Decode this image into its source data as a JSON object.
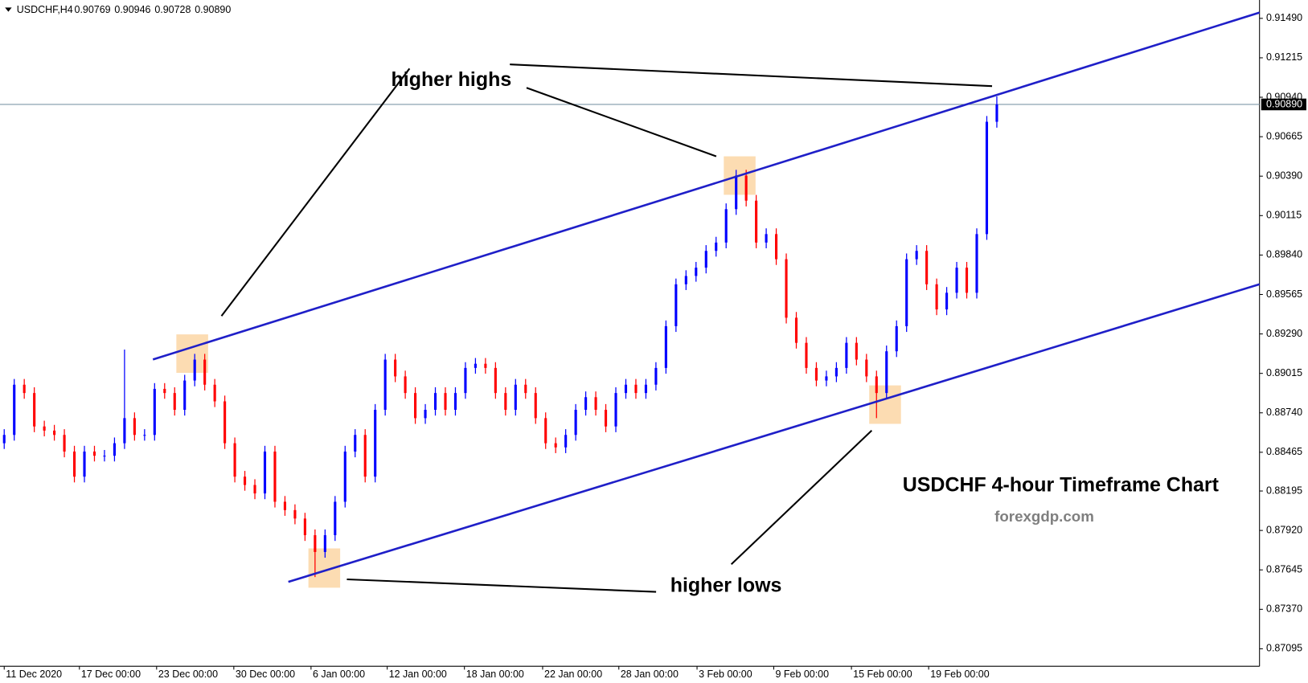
{
  "chart_data": {
    "type": "candlestick",
    "symbol": "USDCHF,H4",
    "title": "USDCHF 4-hour Timeframe Chart",
    "subtitle": "forexgdp.com",
    "annotations": [
      "higher highs",
      "higher lows"
    ],
    "current_price": {
      "value": 0.9089,
      "label": "0.90890"
    },
    "up_color": "#0000ff",
    "down_color": "#ff0000",
    "channel_color": "#1f1fc8",
    "ylim": [
      0.86973,
      0.91618
    ],
    "yticks": [
      {
        "value": 0.9149,
        "label": "0.91490"
      },
      0.91215,
      {
        "value": 0.9094,
        "label": "0.90940"
      },
      0.90665,
      {
        "value": 0.9039,
        "label": "0.90390"
      },
      0.90115,
      {
        "value": 0.8984,
        "label": "0.89840"
      },
      0.89565,
      {
        "value": 0.8929,
        "label": "0.89290"
      },
      0.89015,
      {
        "value": 0.8874,
        "label": "0.88740"
      },
      0.88465,
      0.88195,
      {
        "value": 0.8792,
        "label": "0.87920"
      },
      0.87645,
      {
        "value": 0.8737,
        "label": "0.87370"
      },
      0.87095
    ],
    "xlim": [
      -0.42,
      125.2
    ],
    "xticks": [
      {
        "value": 0,
        "label": "11 Dec 2020"
      },
      {
        "value": 7.5,
        "label": "17 Dec 00:00"
      },
      {
        "value": 15.2,
        "label": "23 Dec 00:00"
      },
      {
        "value": 22.9,
        "label": "30 Dec 00:00"
      },
      {
        "value": 30.6,
        "label": "6 Jan 00:00"
      },
      {
        "value": 38.2,
        "label": "12 Jan 00:00"
      },
      {
        "value": 45.9,
        "label": "18 Jan 00:00"
      },
      {
        "value": 53.7,
        "label": "22 Jan 00:00"
      },
      {
        "value": 61.3,
        "label": "28 Jan 00:00"
      },
      {
        "value": 69.1,
        "label": "3 Feb 00:00"
      },
      {
        "value": 76.75,
        "label": "9 Feb 00:00"
      },
      {
        "value": 84.5,
        "label": "15 Feb 00:00"
      },
      {
        "value": 92.2,
        "label": "19 Feb 00:00"
      }
    ],
    "open": [
      0.88528,
      0.88586,
      0.88936,
      0.88878,
      0.88645,
      0.88616,
      0.88586,
      0.8847,
      0.88295,
      0.8847,
      0.88441,
      0.88441,
      0.88528,
      0.88703,
      0.88586,
      0.88586,
      0.88907,
      0.88878,
      0.88761,
      0.88965,
      0.89111,
      0.88936,
      0.8882,
      0.88528,
      0.88295,
      0.88237,
      0.88178,
      0.8847,
      0.8812,
      0.88062,
      0.88003,
      0.87887,
      0.8777,
      0.87887,
      0.8812,
      0.8847,
      0.88586,
      0.88295,
      0.88761,
      0.89111,
      0.88994,
      0.88878,
      0.88703,
      0.88761,
      0.88878,
      0.88761,
      0.88878,
      0.89053,
      0.89082,
      0.89053,
      0.88878,
      0.88761,
      0.88936,
      0.88878,
      0.88703,
      0.88528,
      0.88499,
      0.88586,
      0.88761,
      0.88849,
      0.88761,
      0.88645,
      0.88878,
      0.88936,
      0.88878,
      0.88936,
      0.89053,
      0.89344,
      0.89636,
      0.89694,
      0.89752,
      0.89869,
      0.89927,
      0.9016,
      0.90394,
      0.90219,
      0.89927,
      0.89986,
      0.89811,
      0.89403,
      0.89228,
      0.89053,
      0.88965,
      0.88994,
      0.89053,
      0.89228,
      0.89111,
      0.88994,
      0.88878,
      0.89169,
      0.89344,
      0.89811,
      0.89869,
      0.89636,
      0.89461,
      0.89577,
      0.89752,
      0.89577,
      0.89986,
      0.90769
    ],
    "high": [
      0.88626,
      0.88976,
      0.88976,
      0.88918,
      0.88685,
      0.88656,
      0.88626,
      0.8851,
      0.8851,
      0.8851,
      0.88481,
      0.88568,
      0.89181,
      0.88743,
      0.88626,
      0.88947,
      0.88947,
      0.88918,
      0.89005,
      0.89151,
      0.89151,
      0.88976,
      0.8886,
      0.88568,
      0.88335,
      0.88277,
      0.8851,
      0.8851,
      0.8816,
      0.88102,
      0.88043,
      0.87927,
      0.87927,
      0.8816,
      0.8851,
      0.88626,
      0.88626,
      0.88801,
      0.89151,
      0.89151,
      0.89034,
      0.88918,
      0.88801,
      0.88918,
      0.88918,
      0.88918,
      0.89093,
      0.89122,
      0.89122,
      0.89093,
      0.88918,
      0.88976,
      0.88976,
      0.88918,
      0.88743,
      0.88568,
      0.88626,
      0.88801,
      0.88889,
      0.88889,
      0.88801,
      0.88918,
      0.88976,
      0.88976,
      0.88976,
      0.89093,
      0.89384,
      0.89676,
      0.89734,
      0.89792,
      0.89909,
      0.89967,
      0.902,
      0.90434,
      0.90434,
      0.90259,
      0.90026,
      0.90026,
      0.89851,
      0.89443,
      0.89268,
      0.89093,
      0.89034,
      0.89093,
      0.89268,
      0.89268,
      0.89151,
      0.89034,
      0.89209,
      0.89384,
      0.89851,
      0.89909,
      0.89909,
      0.89676,
      0.89617,
      0.89792,
      0.89792,
      0.90026,
      0.90809,
      0.90946
    ],
    "low": [
      0.88488,
      0.88546,
      0.88838,
      0.88605,
      0.88576,
      0.88546,
      0.8843,
      0.88255,
      0.88255,
      0.88401,
      0.88401,
      0.88401,
      0.88488,
      0.88546,
      0.88546,
      0.88546,
      0.88838,
      0.88721,
      0.88721,
      0.88925,
      0.88896,
      0.8878,
      0.88488,
      0.88255,
      0.88197,
      0.88138,
      0.88138,
      0.8808,
      0.88022,
      0.87963,
      0.87847,
      0.87595,
      0.8773,
      0.87847,
      0.8808,
      0.8843,
      0.88255,
      0.88255,
      0.88721,
      0.88954,
      0.88838,
      0.88663,
      0.88663,
      0.88721,
      0.88721,
      0.88721,
      0.88838,
      0.89013,
      0.89013,
      0.88838,
      0.88721,
      0.88721,
      0.88838,
      0.88663,
      0.88488,
      0.88459,
      0.88459,
      0.88546,
      0.88721,
      0.88721,
      0.88605,
      0.88605,
      0.88838,
      0.88838,
      0.88838,
      0.88896,
      0.89013,
      0.89304,
      0.89596,
      0.89654,
      0.89712,
      0.89829,
      0.89887,
      0.9012,
      0.90179,
      0.89887,
      0.89887,
      0.89771,
      0.89363,
      0.89188,
      0.89013,
      0.88925,
      0.88925,
      0.88954,
      0.89013,
      0.89071,
      0.88954,
      0.88703,
      0.88838,
      0.89129,
      0.89304,
      0.89771,
      0.89596,
      0.89421,
      0.89421,
      0.89537,
      0.89537,
      0.89537,
      0.89946,
      0.90728
    ],
    "close": [
      0.88586,
      0.88936,
      0.88878,
      0.88645,
      0.88616,
      0.88586,
      0.8847,
      0.88295,
      0.8847,
      0.88441,
      0.88441,
      0.88528,
      0.88703,
      0.88586,
      0.88586,
      0.88907,
      0.88878,
      0.88761,
      0.88965,
      0.89111,
      0.88936,
      0.8882,
      0.88528,
      0.88295,
      0.88237,
      0.88178,
      0.8847,
      0.8812,
      0.88062,
      0.88003,
      0.87887,
      0.8777,
      0.87887,
      0.8812,
      0.8847,
      0.88586,
      0.88295,
      0.88761,
      0.89111,
      0.88994,
      0.88878,
      0.88703,
      0.88761,
      0.88878,
      0.88761,
      0.88878,
      0.89053,
      0.89082,
      0.89053,
      0.88878,
      0.88761,
      0.88936,
      0.88878,
      0.88703,
      0.88528,
      0.88499,
      0.88586,
      0.88761,
      0.88849,
      0.88761,
      0.88645,
      0.88878,
      0.88936,
      0.88878,
      0.88936,
      0.89053,
      0.89344,
      0.89636,
      0.89694,
      0.89752,
      0.89869,
      0.89927,
      0.9016,
      0.90394,
      0.90219,
      0.89927,
      0.89986,
      0.89811,
      0.89403,
      0.89228,
      0.89053,
      0.88965,
      0.88994,
      0.89053,
      0.89228,
      0.89111,
      0.88994,
      0.88878,
      0.89169,
      0.89344,
      0.89811,
      0.89869,
      0.89636,
      0.89461,
      0.89577,
      0.89752,
      0.89577,
      0.89986,
      0.90769,
      0.9089
    ]
  }
}
